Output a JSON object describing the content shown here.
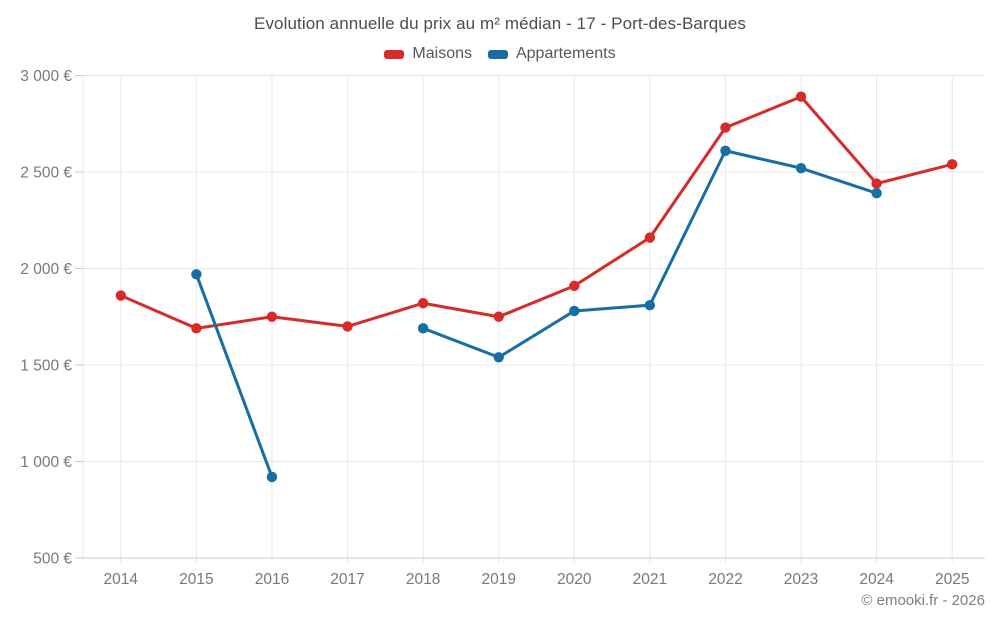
{
  "title": "Evolution annuelle du prix au m² médian - 17 - Port-des-Barques",
  "footer": "© emooki.fr - 2026",
  "legend": {
    "items": [
      {
        "label": "Maisons",
        "color": "#d62b29"
      },
      {
        "label": "Appartements",
        "color": "#176ea5"
      }
    ]
  },
  "colors": {
    "background": "#ffffff",
    "grid": "#e8e8e8",
    "axis": "#c9c9c9",
    "title_text": "#4a4d51",
    "legend_text": "#54575b",
    "axis_text": "#76797d",
    "footer_text": "#7c7f83",
    "maisons": "#d62b29",
    "appartements": "#176ea5"
  },
  "chart_data": {
    "type": "line",
    "title": "Evolution annuelle du prix au m² médian - 17 - Port-des-Barques",
    "xlabel": "",
    "ylabel": "",
    "x": [
      2014,
      2015,
      2016,
      2017,
      2018,
      2019,
      2020,
      2021,
      2022,
      2023,
      2024,
      2025
    ],
    "series": [
      {
        "name": "Maisons",
        "color": "#d62b29",
        "values": [
          1860,
          1690,
          1750,
          1700,
          1820,
          1750,
          1910,
          2160,
          2730,
          2890,
          2440,
          2540
        ]
      },
      {
        "name": "Appartements",
        "color": "#176ea5",
        "values": [
          null,
          1970,
          920,
          null,
          1690,
          1540,
          1780,
          1810,
          2610,
          2520,
          2390,
          null
        ]
      }
    ],
    "ylim": [
      500,
      3000
    ],
    "yticks": [
      500,
      1000,
      1500,
      2000,
      2500,
      3000
    ],
    "ytick_labels": [
      "500 €",
      "1 000 €",
      "1 500 €",
      "2 000 €",
      "2 500 €",
      "3 000 €"
    ],
    "grid": true,
    "legend_position": "top",
    "currency": "EUR"
  }
}
